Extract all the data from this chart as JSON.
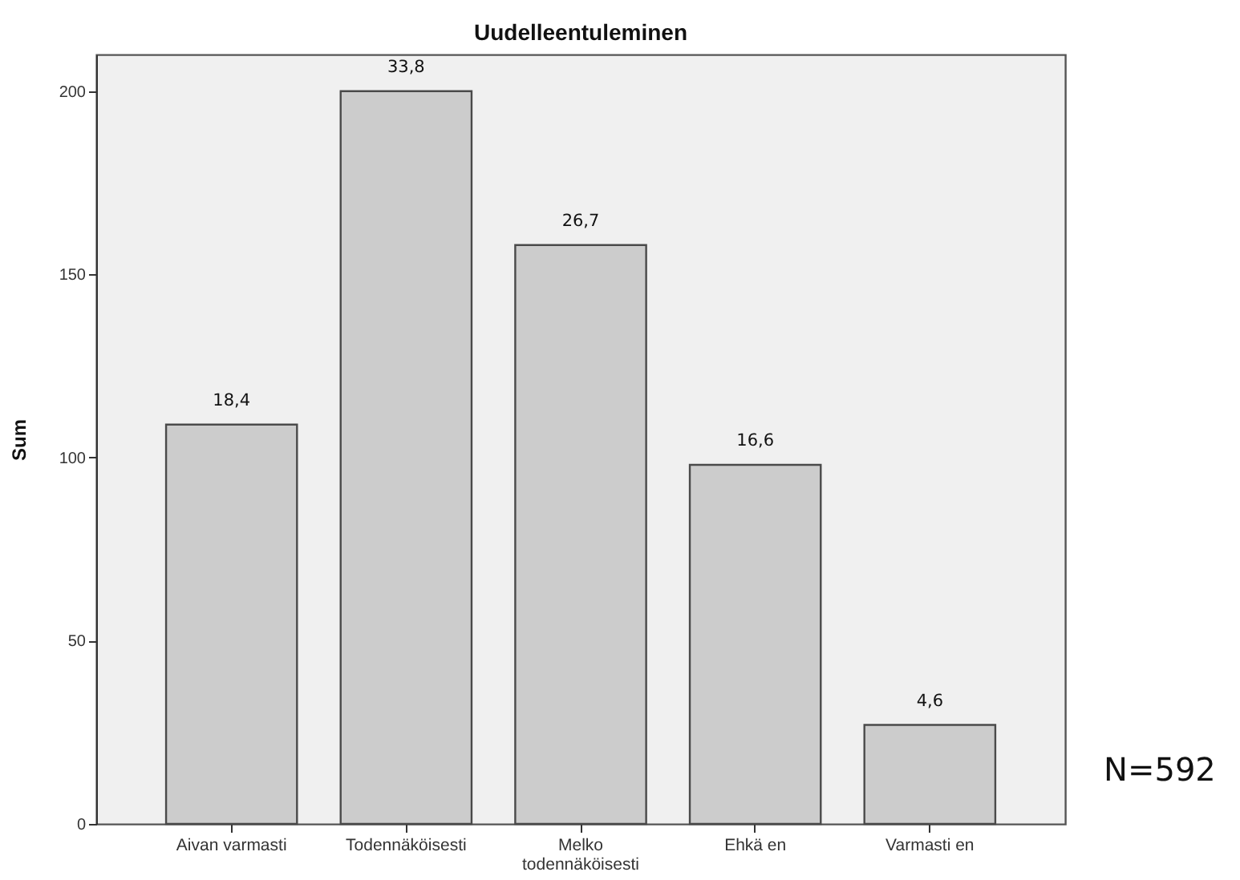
{
  "chart_data": {
    "type": "bar",
    "title": "Uudelleentuleminen",
    "ylabel": "Sum",
    "categories": [
      "Aivan varmasti",
      "Todennäköisesti",
      "Melko todennäköisesti",
      "Ehkä en",
      "Varmasti en"
    ],
    "values": [
      109,
      200,
      158,
      98,
      27
    ],
    "color": "#cccccc",
    "ylim": [
      0,
      210
    ],
    "yticks": [
      0,
      50,
      100,
      150,
      200
    ],
    "annotations": [
      {
        "text": "18,4",
        "x": "Aivan varmasti",
        "y": 109
      },
      {
        "text": "33,8",
        "x": "Todennäköisesti",
        "y": 200
      },
      {
        "text": "26,7",
        "x": "Melko todennäköisesti",
        "y": 158
      },
      {
        "text": "16,6",
        "x": "Ehkä en",
        "y": 98
      },
      {
        "text": "4,6",
        "x": "Varmasti en",
        "y": 27
      },
      "N=592"
    ]
  }
}
